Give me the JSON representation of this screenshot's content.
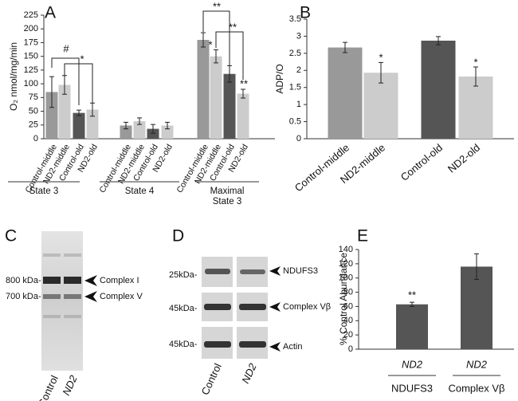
{
  "chart_data": [
    {
      "type": "bar",
      "panel_label": "A",
      "y_label": "O₂ nmol/mg/min",
      "ylim": [
        0,
        225
      ],
      "yticks": [
        0,
        25,
        50,
        75,
        100,
        125,
        150,
        175,
        200,
        225
      ],
      "colors": [
        "#999999",
        "#cccccc",
        "#555555",
        "#cccccc"
      ],
      "groups": [
        {
          "label": [
            "State 3"
          ],
          "categories": [
            "Control-middle",
            "ND2-middle",
            "Control-old",
            "ND2-old"
          ],
          "values": [
            85,
            98,
            47,
            53
          ],
          "errors": [
            28,
            17,
            5,
            12
          ]
        },
        {
          "label": [
            "State 4"
          ],
          "categories": [
            "Control-middle",
            "ND2-middle",
            "Control-old",
            "ND2-old"
          ],
          "values": [
            24,
            32,
            18,
            24
          ],
          "errors": [
            6,
            6,
            8,
            6
          ]
        },
        {
          "label": [
            "Maximal",
            "State 3"
          ],
          "categories": [
            "Control-middle",
            "ND2-middle",
            "Control-old",
            "ND2-old"
          ],
          "values": [
            180,
            150,
            118,
            82
          ],
          "errors": [
            13,
            12,
            15,
            8
          ]
        }
      ],
      "annotations": [
        "#",
        "*",
        "**",
        "**",
        "*",
        "**"
      ]
    },
    {
      "type": "bar",
      "panel_label": "B",
      "y_label": "ADP/O",
      "ylim": [
        0,
        3.5
      ],
      "yticks": [
        0,
        0.5,
        1,
        1.5,
        2,
        2.5,
        3,
        3.5
      ],
      "colors": [
        "#999999",
        "#cccccc",
        "#555555",
        "#cccccc"
      ],
      "groups": [
        {
          "categories": [
            "Control-middle",
            "ND2-middle",
            "Control-old",
            "ND2-old"
          ],
          "values": [
            2.67,
            1.93,
            2.87,
            1.82
          ],
          "errors": [
            0.15,
            0.3,
            0.12,
            0.28
          ]
        }
      ],
      "annotations": [
        "*",
        "*"
      ]
    },
    {
      "type": "bar",
      "panel_label": "E",
      "y_label": "% Control Abundance",
      "ylim": [
        0,
        140
      ],
      "yticks": [
        0,
        20,
        40,
        60,
        80,
        100,
        120,
        140
      ],
      "colors": [
        "#555555",
        "#555555"
      ],
      "groups": [
        {
          "categories": [
            "ND2",
            "ND2"
          ],
          "subcategories": [
            "NDUFS3",
            "Complex Vβ"
          ],
          "values": [
            63,
            116
          ],
          "errors": [
            3,
            18
          ]
        }
      ],
      "annotations": [
        "**"
      ]
    }
  ],
  "blot_c": {
    "panel_label": "C",
    "markers": [
      "800 kDa-",
      "700 kDa-"
    ],
    "bands": [
      "Complex I",
      "Complex V"
    ],
    "lanes": [
      "Control",
      "ND2"
    ]
  },
  "blot_d": {
    "panel_label": "D",
    "markers": [
      "25kDa-",
      "45kDa-",
      "45kDa-"
    ],
    "bands": [
      "NDUFS3",
      "Complex Vβ",
      "Actin"
    ],
    "lanes": [
      "Control",
      "ND2"
    ]
  }
}
